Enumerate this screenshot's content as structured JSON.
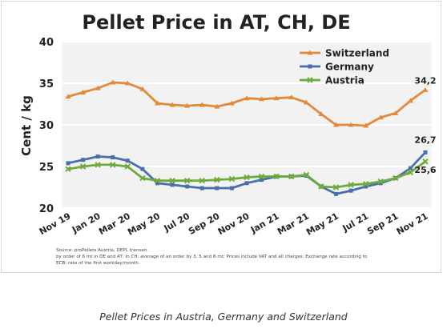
{
  "chart_data": {
    "type": "line",
    "title": "Pellet Price in AT, CH, DE",
    "ylabel": "Cent / kg",
    "xlabel": "",
    "ylim": [
      20,
      40
    ],
    "yticks": [
      "20",
      "25",
      "30",
      "35",
      "40"
    ],
    "ytick_values": [
      20,
      25,
      30,
      35,
      40
    ],
    "xtick_labels": [
      "Nov 19",
      "Jan 20",
      "Mar 20",
      "May 20",
      "Jul 20",
      "Sep 20",
      "Nov 20",
      "Jan 21",
      "Mar 21",
      "May 21",
      "Jul 21",
      "Sep 21",
      "Nov 21"
    ],
    "x": [
      "Nov 19",
      "Dec 19",
      "Jan 20",
      "Feb 20",
      "Mar 20",
      "Apr 20",
      "May 20",
      "Jun 20",
      "Jul 20",
      "Aug 20",
      "Sep 20",
      "Oct 20",
      "Nov 20",
      "Dec 20",
      "Jan 21",
      "Feb 21",
      "Mar 21",
      "Apr 21",
      "May 21",
      "Jun 21",
      "Jul 21",
      "Aug 21",
      "Sep 21",
      "Oct 21",
      "Nov 21"
    ],
    "grid": true,
    "legend_position": "top-right",
    "series": [
      {
        "name": "Switzerland",
        "color": "#e3893a",
        "marker": "triangle",
        "values": [
          33.4,
          33.9,
          34.4,
          35.1,
          35.0,
          34.3,
          32.6,
          32.4,
          32.3,
          32.4,
          32.2,
          32.6,
          33.2,
          33.1,
          33.2,
          33.3,
          32.7,
          31.3,
          30.0,
          30.0,
          29.9,
          30.9,
          31.4,
          32.9,
          34.2
        ],
        "end_label": "34,2"
      },
      {
        "name": "Germany",
        "color": "#4a6fae",
        "marker": "square",
        "values": [
          25.4,
          25.8,
          26.2,
          26.1,
          25.7,
          24.7,
          23.0,
          22.8,
          22.6,
          22.4,
          22.4,
          22.4,
          23.0,
          23.4,
          23.8,
          23.8,
          23.9,
          22.6,
          21.7,
          22.1,
          22.6,
          23.0,
          23.6,
          24.8,
          26.7
        ],
        "end_label": "26,7"
      },
      {
        "name": "Austria",
        "color": "#6cab3c",
        "marker": "cross",
        "values": [
          24.7,
          25.0,
          25.2,
          25.2,
          25.0,
          23.6,
          23.3,
          23.3,
          23.3,
          23.3,
          23.4,
          23.5,
          23.7,
          23.8,
          23.8,
          23.8,
          24.0,
          22.6,
          22.5,
          22.8,
          22.9,
          23.2,
          23.6,
          24.3,
          25.6
        ],
        "end_label": "25,6"
      }
    ],
    "source_lines": [
      "Source: proPellets Austria, DEPI, transan.",
      "by order of 6 mt in DE and AT; in CH: average of an order by 3, 5 and 8 mt; Prices include VAT and all charges. Exchange rate according to",
      "ECB; rate of the first workday/month."
    ],
    "plot_background": "#f2f2f2"
  },
  "caption": "Pellet Prices in Austria, Germany and Switzerland"
}
